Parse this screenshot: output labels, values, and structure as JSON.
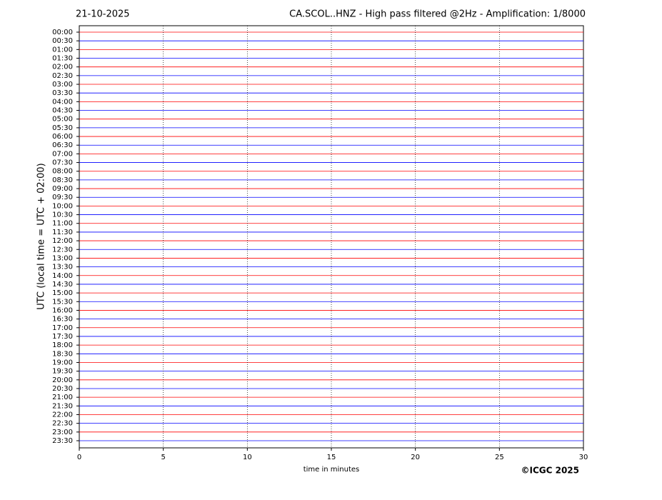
{
  "chart_data": {
    "type": "helicorder",
    "date": "21-10-2025",
    "title": "CA.SCOL..HNZ - High pass filtered @2Hz - Amplification: 1/8000",
    "ylabel": "UTC (local time = UTC + 02:00)",
    "xlabel": "time in minutes",
    "copyright": "©ICGC 2025",
    "categories": [
      "00:00",
      "00:30",
      "01:00",
      "01:30",
      "02:00",
      "02:30",
      "03:00",
      "03:30",
      "04:00",
      "04:30",
      "05:00",
      "05:30",
      "06:00",
      "06:30",
      "07:00",
      "07:30",
      "08:00",
      "08:30",
      "09:00",
      "09:30",
      "10:00",
      "10:30",
      "11:00",
      "11:30",
      "12:00",
      "12:30",
      "13:00",
      "13:30",
      "14:00",
      "14:30",
      "15:00",
      "15:30",
      "16:00",
      "16:30",
      "17:00",
      "17:30",
      "18:00",
      "18:30",
      "19:00",
      "19:30",
      "20:00",
      "20:30",
      "21:00",
      "21:30",
      "22:00",
      "22:30",
      "23:00",
      "23:30"
    ],
    "colors": [
      "#ff0000",
      "#0000ff"
    ],
    "xlim": [
      0,
      30
    ],
    "xticks": [
      0,
      5,
      10,
      15,
      20,
      25,
      30
    ],
    "grid": true
  }
}
